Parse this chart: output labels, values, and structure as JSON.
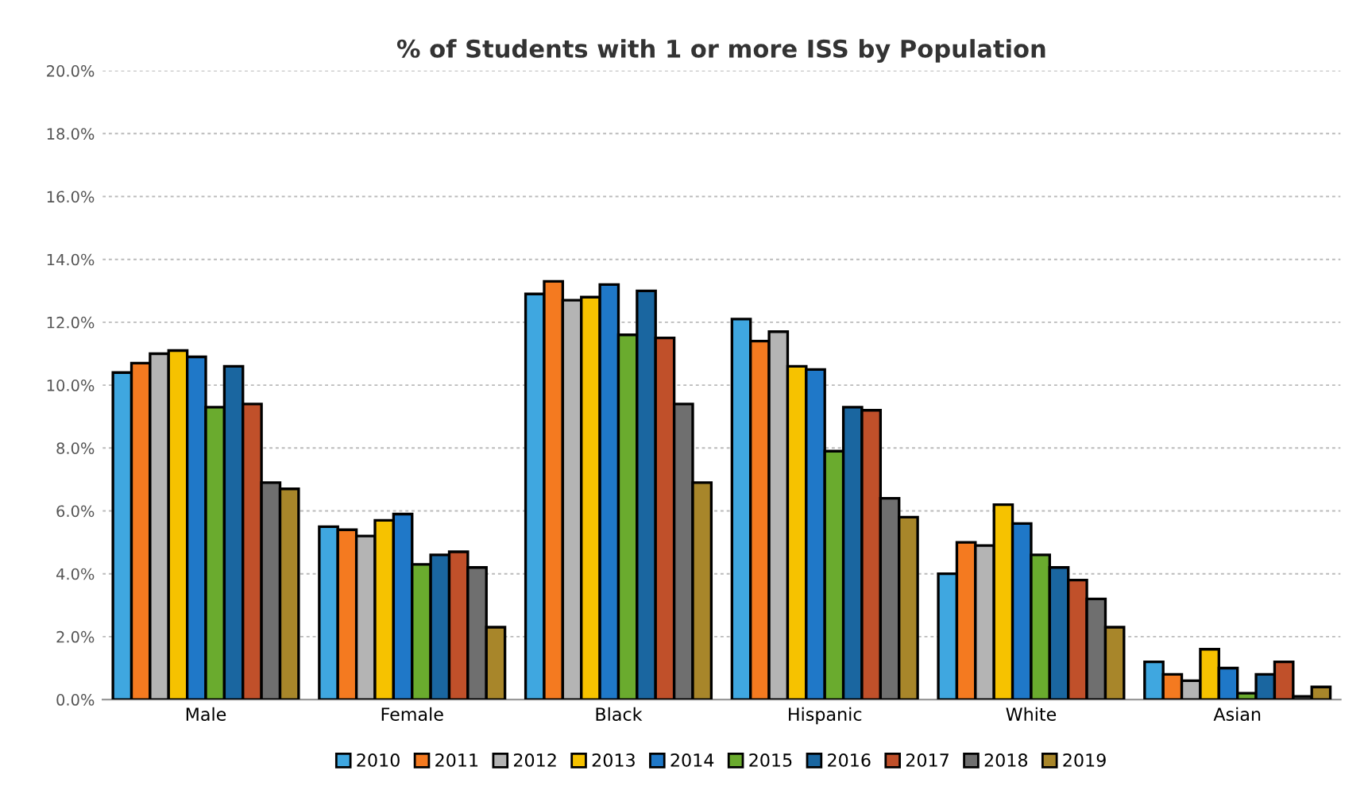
{
  "chart_data": {
    "type": "bar",
    "title": "% of Students with 1 or more ISS by Population",
    "categories": [
      "Male",
      "Female",
      "Black",
      "Hispanic",
      "White",
      "Asian"
    ],
    "series": [
      {
        "name": "2010",
        "color": "#3fa7e0",
        "values": [
          10.4,
          5.5,
          12.9,
          12.1,
          4.0,
          1.2
        ]
      },
      {
        "name": "2011",
        "color": "#f47a20",
        "values": [
          10.7,
          5.4,
          13.3,
          11.4,
          5.0,
          0.8
        ]
      },
      {
        "name": "2012",
        "color": "#b4b4b4",
        "values": [
          11.0,
          5.2,
          12.7,
          11.7,
          4.9,
          0.6
        ]
      },
      {
        "name": "2013",
        "color": "#f6c200",
        "values": [
          11.1,
          5.7,
          12.8,
          10.6,
          6.2,
          1.6
        ]
      },
      {
        "name": "2014",
        "color": "#1f78c8",
        "values": [
          10.9,
          5.9,
          13.2,
          10.5,
          5.6,
          1.0
        ]
      },
      {
        "name": "2015",
        "color": "#6aab2e",
        "values": [
          9.3,
          4.3,
          11.6,
          7.9,
          4.6,
          0.2
        ]
      },
      {
        "name": "2016",
        "color": "#1a66a0",
        "values": [
          10.6,
          4.6,
          13.0,
          9.3,
          4.2,
          0.8
        ]
      },
      {
        "name": "2017",
        "color": "#c0502a",
        "values": [
          9.4,
          4.7,
          11.5,
          9.2,
          3.8,
          1.2
        ]
      },
      {
        "name": "2018",
        "color": "#6f6f6f",
        "values": [
          6.9,
          4.2,
          9.4,
          6.4,
          3.2,
          0.1
        ]
      },
      {
        "name": "2019",
        "color": "#a8862a",
        "values": [
          6.7,
          2.3,
          6.9,
          5.8,
          2.3,
          0.4
        ]
      }
    ],
    "ylim": [
      0,
      20
    ],
    "yticks": [
      {
        "value": 0,
        "label": "0.0%"
      },
      {
        "value": 2,
        "label": "2.0%"
      },
      {
        "value": 4,
        "label": "4.0%"
      },
      {
        "value": 6,
        "label": "6.0%"
      },
      {
        "value": 8,
        "label": "8.0%"
      },
      {
        "value": 10,
        "label": "10.0%"
      },
      {
        "value": 12,
        "label": "12.0%"
      },
      {
        "value": 14,
        "label": "14.0%"
      },
      {
        "value": 16,
        "label": "16.0%"
      },
      {
        "value": 18,
        "label": "18.0%"
      },
      {
        "value": 20,
        "label": "20.0%"
      }
    ],
    "grid": "y",
    "legend": "bottom"
  }
}
